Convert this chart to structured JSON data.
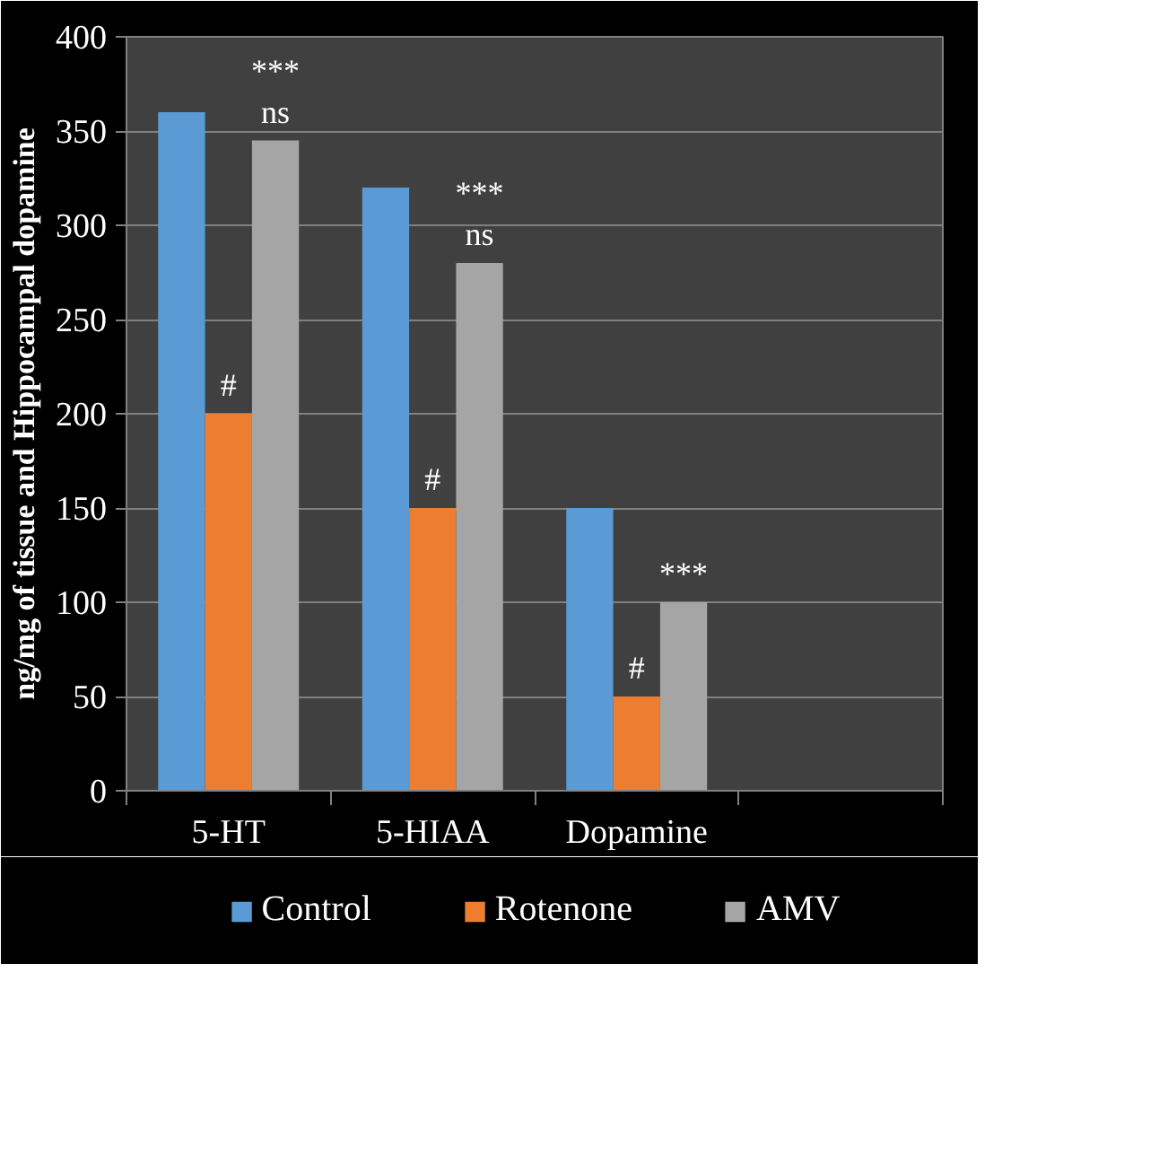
{
  "chart_data": {
    "type": "bar",
    "ylabel": "ng/mg of tissue and Hippocampal dopamine",
    "categories": [
      "5-HT",
      "5-HIAA",
      "Dopamine",
      null
    ],
    "series": [
      {
        "name": "Control",
        "color": "#5b9bd5",
        "values": [
          360,
          320,
          150,
          null
        ]
      },
      {
        "name": "Rotenone",
        "color": "#ed7d31",
        "values": [
          200,
          150,
          50,
          null
        ],
        "value_labels": [
          "#",
          "#",
          "#",
          null
        ]
      },
      {
        "name": "AMV",
        "color": "#a5a5a5",
        "values": [
          345,
          280,
          100,
          null
        ],
        "value_labels": [
          "***\nns",
          "***\nns",
          "***",
          null
        ]
      }
    ],
    "ylim": [
      0,
      400
    ],
    "yticks": [
      0,
      50,
      100,
      150,
      200,
      250,
      300,
      350,
      400
    ],
    "grid": "y",
    "legend": "bottom"
  }
}
